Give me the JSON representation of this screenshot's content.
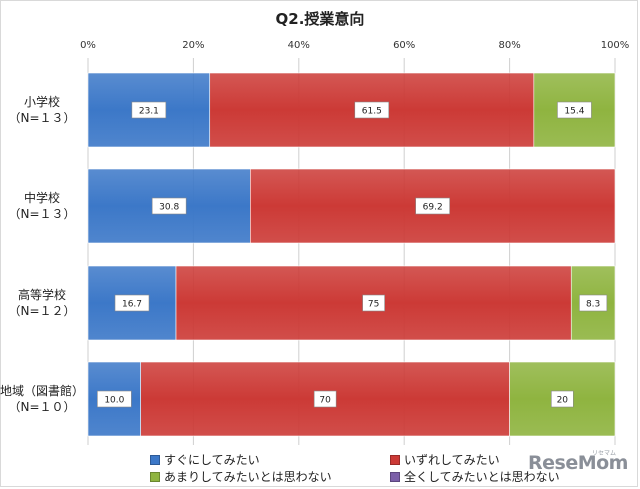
{
  "chart_data": {
    "type": "bar",
    "orientation": "horizontal",
    "stacked": true,
    "title": "Q2.授業意向",
    "categories": [
      [
        "小学校",
        "（N=１３）"
      ],
      [
        "中学校",
        "（N=１３）"
      ],
      [
        "高等学校",
        "（N=１２）"
      ],
      [
        "地域（図書館）",
        "（N=１０）"
      ]
    ],
    "x_ticks": [
      "0%",
      "20%",
      "40%",
      "60%",
      "80%",
      "100%"
    ],
    "xlim": [
      0,
      100
    ],
    "series": [
      {
        "name": "すぐにしてみたい",
        "color": "#3c78c8",
        "values": [
          23.1,
          30.8,
          16.7,
          10.0
        ],
        "labels": [
          "23.1",
          "30.8",
          "16.7",
          "10.0"
        ]
      },
      {
        "name": "いずれしてみたい",
        "color": "#cc3a36",
        "values": [
          61.5,
          69.2,
          75,
          70
        ],
        "labels": [
          "61.5",
          "69.2",
          "75",
          "70"
        ]
      },
      {
        "name": "あまりしてみたいとは思わない",
        "color": "#8fb440",
        "values": [
          15.4,
          0,
          8.3,
          20
        ],
        "labels": [
          "15.4",
          "",
          "8.3",
          "20"
        ]
      },
      {
        "name": "全くしてみたいとは思わない",
        "color": "#7b5fa8",
        "values": [
          0,
          0,
          0,
          0
        ],
        "labels": [
          "",
          "",
          "",
          ""
        ]
      }
    ],
    "grid": true,
    "legend_position": "bottom"
  },
  "watermark": {
    "text": "ReseMom",
    "small": "リセマム"
  }
}
